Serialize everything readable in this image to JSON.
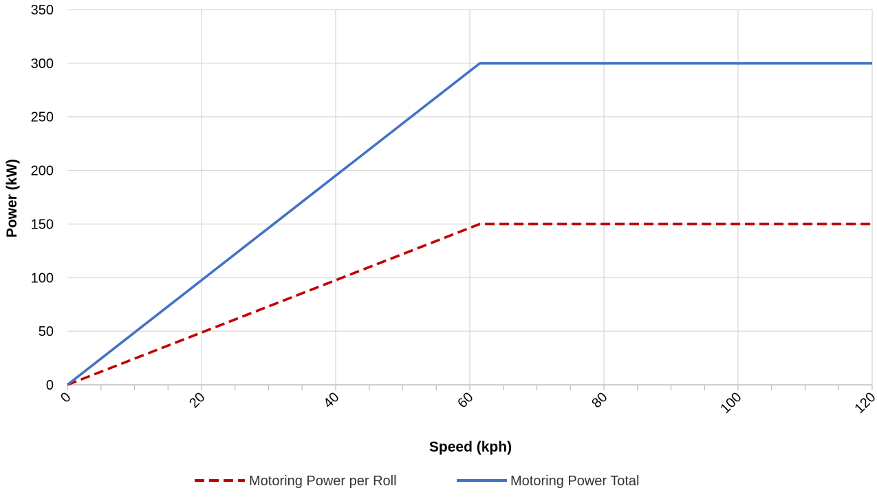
{
  "chart_data": {
    "type": "line",
    "title": "",
    "xlabel": "Speed (kph)",
    "ylabel": "Power (kW)",
    "xlim": [
      0,
      120
    ],
    "ylim": [
      0,
      350
    ],
    "x_ticks": [
      0,
      20,
      40,
      60,
      80,
      100,
      120
    ],
    "x_tick_labels": [
      "0",
      "20",
      "40",
      "60",
      "80",
      "100",
      "120"
    ],
    "y_ticks": [
      0,
      50,
      100,
      150,
      200,
      250,
      300,
      350
    ],
    "y_tick_labels": [
      "0",
      "50",
      "100",
      "150",
      "200",
      "250",
      "300",
      "350"
    ],
    "x_minor_step": 5,
    "grid": true,
    "legend_position": "bottom-center",
    "series": [
      {
        "name": "Motoring Power per Roll",
        "color": "#C00000",
        "line_style": "dashed",
        "x": [
          0,
          61.5,
          120
        ],
        "y": [
          0,
          150,
          150
        ]
      },
      {
        "name": "Motoring Power Total",
        "color": "#4472C4",
        "line_style": "solid",
        "x": [
          0,
          61.5,
          120
        ],
        "y": [
          0,
          300,
          300
        ]
      }
    ]
  }
}
